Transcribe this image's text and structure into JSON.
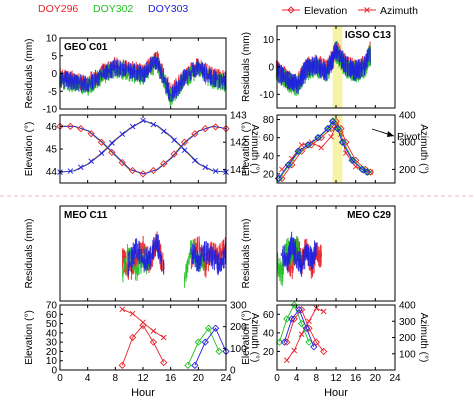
{
  "legend_top_left": [
    {
      "label": "DOY296",
      "color": "#e8232a"
    },
    {
      "label": "DOY302",
      "color": "#22c022"
    },
    {
      "label": "DOY303",
      "color": "#2222dd"
    }
  ],
  "legend_top_right": [
    {
      "label": "Elevation",
      "color": "#e8232a",
      "marker": "diamond"
    },
    {
      "label": "Azimuth",
      "color": "#e8232a",
      "marker": "x"
    }
  ],
  "annotations": {
    "pivot": "Pivot"
  },
  "colors": {
    "red": "#e8232a",
    "green": "#22c022",
    "blue": "#2222dd",
    "highlight": "#f6f3a6",
    "divider": "#f2a0a0"
  },
  "chart_data": [
    {
      "type": "scatter",
      "panel": "GEO C01",
      "title": "GEO C01",
      "ylabel": "Residuals (mm)",
      "xlim": [
        0,
        24
      ],
      "ylim": [
        -10,
        10
      ],
      "yticks": [
        -10,
        -5,
        0,
        5,
        10
      ],
      "series": [
        {
          "name": "DOY296",
          "x": [
            0,
            2,
            4,
            6,
            8,
            10,
            12,
            14,
            15,
            16,
            18,
            20,
            22,
            24
          ],
          "values": [
            0,
            -1,
            -2,
            1,
            3,
            2,
            1,
            5,
            0,
            -5,
            0,
            3,
            0,
            -1
          ]
        },
        {
          "name": "DOY302",
          "x": [
            0,
            2,
            4,
            6,
            8,
            10,
            12,
            14,
            15,
            16,
            18,
            20,
            22,
            24
          ],
          "values": [
            -1,
            -2,
            -3,
            0,
            2,
            1,
            0,
            4,
            -1,
            -6,
            -1,
            2,
            -1,
            -2
          ]
        },
        {
          "name": "DOY303",
          "x": [
            0,
            2,
            4,
            6,
            8,
            10,
            12,
            14,
            15,
            16,
            18,
            20,
            22,
            24
          ],
          "values": [
            -0.5,
            -1.5,
            -2.5,
            0.5,
            2.5,
            1.5,
            0.5,
            4.5,
            -0.5,
            -5.5,
            -0.5,
            2.5,
            -0.5,
            -1.5
          ]
        }
      ]
    },
    {
      "type": "line",
      "panel": "GEO C01",
      "ylabel": "Elevation (°)",
      "y2label": "Azimuth (°)",
      "xlim": [
        0,
        24
      ],
      "ylim": [
        43.5,
        46.5
      ],
      "yticks": [
        44,
        45,
        46
      ],
      "y2lim": [
        140.5,
        143
      ],
      "y2ticks": [
        141,
        142,
        143
      ],
      "series": [
        {
          "name": "Elevation",
          "x": [
            0,
            2,
            4,
            6,
            8,
            10,
            12,
            14,
            16,
            18,
            20,
            22,
            24
          ],
          "values": [
            46,
            46,
            45.8,
            45.3,
            44.7,
            44.1,
            43.9,
            44.1,
            44.6,
            45.3,
            45.8,
            46,
            45.9
          ]
        },
        {
          "name": "Azimuth",
          "x": [
            0,
            2,
            4,
            6,
            8,
            10,
            12,
            14,
            16,
            18,
            20,
            22,
            24
          ],
          "values": [
            140.9,
            140.95,
            141.2,
            141.6,
            142.1,
            142.5,
            142.8,
            142.6,
            142.2,
            141.7,
            141.2,
            140.95,
            140.9
          ]
        }
      ]
    },
    {
      "type": "scatter",
      "panel": "IGSO C13",
      "title": "IGSO C13",
      "ylabel": "Residuals (mm)",
      "xlim": [
        0,
        24
      ],
      "ylim": [
        -15,
        15
      ],
      "yticks": [
        -10,
        0,
        10
      ],
      "series": [
        {
          "name": "DOY296",
          "x": [
            0,
            2,
            4,
            6,
            8,
            10,
            11,
            12,
            14,
            16,
            18,
            19
          ],
          "values": [
            0,
            -3,
            -5,
            1,
            2,
            0,
            3,
            8,
            2,
            0,
            2,
            7
          ]
        },
        {
          "name": "DOY302",
          "x": [
            0,
            2,
            4,
            6,
            8,
            10,
            11,
            12,
            14,
            16,
            18,
            19
          ],
          "values": [
            -1,
            -4,
            -6,
            0,
            1,
            -1,
            2,
            7,
            1,
            -1,
            1,
            6
          ]
        },
        {
          "name": "DOY303",
          "x": [
            0,
            2,
            4,
            6,
            8,
            10,
            11,
            12,
            14,
            16,
            18,
            19
          ],
          "values": [
            -0.5,
            -3.5,
            -5.5,
            0.5,
            1.5,
            -0.5,
            2.5,
            7.5,
            1.5,
            -0.5,
            1.5,
            6.5
          ]
        }
      ]
    },
    {
      "type": "line",
      "panel": "IGSO C13",
      "ylabel": "Elevation (°)",
      "y2label": "Azimuth (°)",
      "xlim": [
        0,
        24
      ],
      "ylim": [
        10,
        85
      ],
      "yticks": [
        20,
        40,
        60,
        80
      ],
      "y2lim": [
        150,
        400
      ],
      "y2ticks": [
        200,
        300,
        400
      ],
      "series": [
        {
          "name": "DOY296 Elevation",
          "x": [
            1,
            3,
            5,
            7,
            9,
            11,
            12,
            13,
            14,
            16,
            18,
            19
          ],
          "values": [
            15,
            30,
            45,
            52,
            60,
            70,
            78,
            70,
            55,
            35,
            25,
            22
          ]
        },
        {
          "name": "DOY296 Azimuth",
          "x": [
            1,
            3,
            5,
            7,
            9,
            11,
            12,
            13,
            14,
            16,
            18,
            19
          ],
          "values": [
            200,
            240,
            290,
            300,
            280,
            320,
            360,
            330,
            260,
            210,
            195,
            190
          ]
        },
        {
          "name": "DOY302 Elevation",
          "x": [
            0.5,
            2.5,
            4.5,
            6.5,
            8.5,
            10.5,
            11.5,
            12.5,
            13.5,
            15.5,
            17.5,
            18.5
          ],
          "values": [
            15,
            30,
            45,
            52,
            60,
            70,
            78,
            70,
            55,
            35,
            25,
            22
          ]
        },
        {
          "name": "DOY303 Elevation",
          "x": [
            0.3,
            2.3,
            4.3,
            6.3,
            8.3,
            10.3,
            11.3,
            12.3,
            13.3,
            15.3,
            17.3,
            18.3
          ],
          "values": [
            15,
            30,
            45,
            52,
            60,
            70,
            78,
            70,
            55,
            35,
            25,
            22
          ]
        }
      ]
    },
    {
      "type": "scatter",
      "panel": "MEO C11",
      "title": "MEO C11",
      "ylabel": "Residuals (mm)",
      "xlim": [
        0,
        24
      ],
      "ylim": [
        -14,
        14
      ],
      "yticks": [],
      "series": [
        {
          "name": "DOY296",
          "x": [
            9,
            10,
            12,
            13,
            14,
            15,
            19,
            20,
            21,
            22,
            23,
            24
          ],
          "values": [
            0,
            -4,
            3,
            -2,
            5,
            -3,
            0,
            4,
            -3,
            2,
            0,
            3
          ]
        },
        {
          "name": "DOY302",
          "x": [
            9,
            10,
            11,
            12,
            13,
            18,
            19,
            20,
            21
          ],
          "values": [
            -5,
            2,
            -4,
            0,
            -3,
            -6,
            3,
            -2,
            0
          ]
        },
        {
          "name": "DOY303",
          "x": [
            10,
            11,
            12,
            13,
            14,
            15,
            19,
            20,
            21,
            22,
            23,
            24
          ],
          "values": [
            -2,
            3,
            -1,
            0,
            4,
            -2,
            1,
            -1,
            2,
            0,
            -2,
            1
          ]
        }
      ]
    },
    {
      "type": "line",
      "panel": "MEO C11",
      "ylabel": "Elevation (°)",
      "y2label": "Azimuth (°)",
      "xlim": [
        0,
        24
      ],
      "ylim": [
        0,
        70
      ],
      "yticks": [
        0,
        10,
        20,
        30,
        40,
        50,
        60,
        70
      ],
      "y2lim": [
        0,
        300
      ],
      "y2ticks": [
        0,
        100,
        200,
        300
      ],
      "series": [
        {
          "name": "DOY296 Elevation",
          "x": [
            9,
            10.5,
            12,
            13.5,
            15
          ],
          "values": [
            5,
            35,
            48,
            30,
            8
          ]
        },
        {
          "name": "DOY296 Azimuth",
          "x": [
            9,
            10.5,
            12,
            13.5,
            15
          ],
          "values": [
            280,
            260,
            220,
            180,
            150
          ]
        },
        {
          "name": "DOY302 Elevation",
          "x": [
            18.5,
            20,
            21.5,
            23
          ],
          "values": [
            5,
            30,
            45,
            20
          ]
        },
        {
          "name": "DOY303 Elevation",
          "x": [
            19.5,
            21,
            22.5,
            24
          ],
          "values": [
            5,
            30,
            45,
            20
          ]
        }
      ]
    },
    {
      "type": "scatter",
      "panel": "MEO C29",
      "title": "MEO C29",
      "ylabel": "Residuals (mm)",
      "xlim": [
        0,
        24
      ],
      "ylim": [
        -14,
        14
      ],
      "yticks": [],
      "series": [
        {
          "name": "DOY296",
          "x": [
            2,
            3,
            4,
            5,
            6,
            7,
            8,
            9
          ],
          "values": [
            0,
            -3,
            5,
            -2,
            3,
            -4,
            1,
            0
          ]
        },
        {
          "name": "DOY302",
          "x": [
            0,
            1,
            2,
            3,
            4,
            5
          ],
          "values": [
            -2,
            -5,
            3,
            -1,
            4,
            -3
          ]
        },
        {
          "name": "DOY303",
          "x": [
            1,
            2,
            3,
            4,
            5,
            6,
            7,
            8
          ],
          "values": [
            1,
            -2,
            4,
            0,
            -3,
            2,
            -1,
            3
          ]
        }
      ]
    },
    {
      "type": "line",
      "panel": "MEO C29",
      "ylabel": "Elevation (°)",
      "y2label": "Azimuth (°)",
      "xlabel": "Hour",
      "xlim": [
        0,
        24
      ],
      "ylim": [
        0,
        70
      ],
      "yticks": [
        20,
        40,
        60
      ],
      "y2lim": [
        0,
        400
      ],
      "y2ticks": [
        100,
        200,
        300,
        400
      ],
      "series": [
        {
          "name": "DOY296 Elevation",
          "x": [
            2,
            3.5,
            5,
            6.5,
            8,
            9.5
          ],
          "values": [
            30,
            55,
            65,
            45,
            30,
            20
          ]
        },
        {
          "name": "DOY296 Azimuth",
          "x": [
            2,
            3.5,
            5,
            6.5,
            8,
            9.5
          ],
          "values": [
            60,
            120,
            220,
            300,
            380,
            360
          ]
        },
        {
          "name": "DOY302 Elevation",
          "x": [
            0.5,
            2,
            3.5,
            5,
            6.5
          ],
          "values": [
            30,
            55,
            70,
            50,
            30
          ]
        },
        {
          "name": "DOY303 Elevation",
          "x": [
            1.5,
            3,
            4.5,
            6,
            7.5
          ],
          "values": [
            30,
            55,
            65,
            45,
            25
          ]
        }
      ]
    }
  ],
  "xaxis": {
    "ticks": [
      "0",
      "4",
      "8",
      "12",
      "16",
      "20",
      "24"
    ],
    "label": "Hour"
  }
}
